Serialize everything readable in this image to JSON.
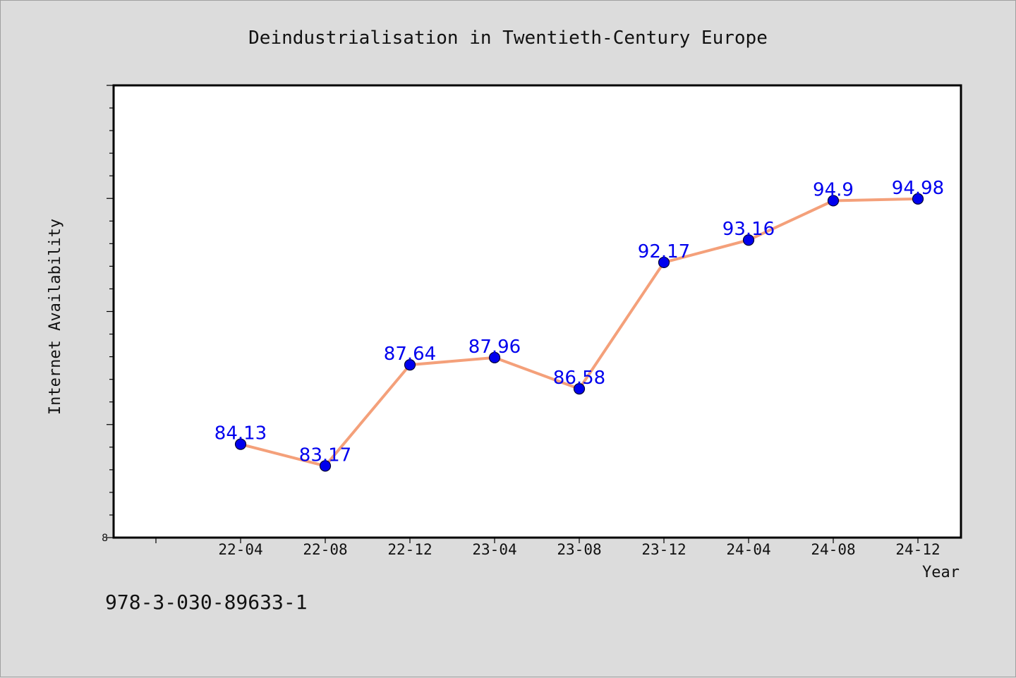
{
  "chart_data": {
    "type": "line",
    "title": "Deindustrialisation in Twentieth-Century Europe",
    "xlabel": "Year",
    "ylabel": "Internet Availability",
    "categories": [
      "22-04",
      "22-08",
      "22-12",
      "23-04",
      "23-08",
      "23-12",
      "24-04",
      "24-08",
      "24-12"
    ],
    "series": [
      {
        "values": [
          84.13,
          83.17,
          87.64,
          87.96,
          86.58,
          92.17,
          93.16,
          94.9,
          94.98
        ]
      }
    ],
    "ylim": [
      80,
      100
    ],
    "y_tick_labels": [
      "8"
    ],
    "grid": false,
    "legend": "none",
    "line_color": "#f4a07a",
    "marker_color": "#0000ee",
    "label_color": "#0000ee"
  },
  "footnote": "978-3-030-89633-1"
}
